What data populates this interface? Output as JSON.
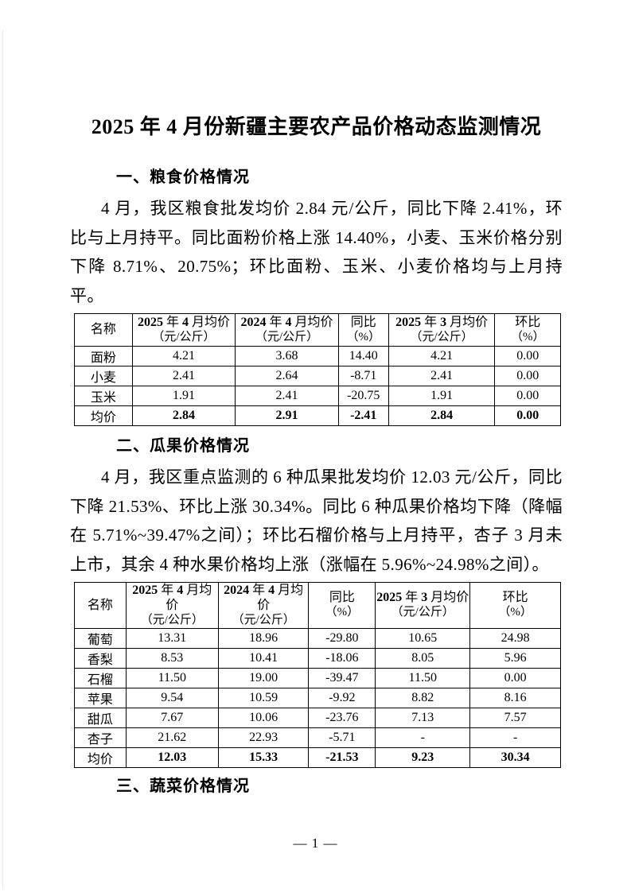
{
  "document": {
    "title": "2025 年 4 月份新疆主要农产品价格动态监测情况",
    "footer": {
      "page_number": "— 1 —"
    }
  },
  "sections": {
    "grain": {
      "heading": "一、粮食价格情况",
      "paragraph": "4 月，我区粮食批发均价 2.84 元/公斤，同比下降 2.41%，环比与上月持平。同比面粉价格上涨 14.40%，小麦、玉米价格分别下降 8.71%、20.75%；环比面粉、玉米、小麦价格均与上月持平。"
    },
    "fruit": {
      "heading": "二、瓜果价格情况",
      "paragraph": "4 月，我区重点监测的 6 种瓜果批发均价 12.03 元/公斤，同比下降 21.53%、环比上涨 30.34%。同比 6 种瓜果价格均下降（降幅在 5.71%~39.47%之间）；环比石榴价格与上月持平，杏子 3 月未上市，其余 4 种水果价格均上涨（涨幅在 5.96%~24.98%之间）。"
    },
    "vegetable": {
      "heading": "三、蔬菜价格情况"
    }
  },
  "tables": [
    {
      "name": "grain-price-table",
      "col_widths": [
        "11.9%",
        "21.2%",
        "21.2%",
        "10.3%",
        "21.9%",
        "13.5%"
      ],
      "headers": [
        {
          "line1": "名称",
          "line2": ""
        },
        {
          "line1": "2025 年 4 月均价",
          "line2": "（元/公斤）"
        },
        {
          "line1": "2024 年 4 月均价",
          "line2": "（元/公斤）"
        },
        {
          "line1": "同比",
          "line2": "（%）"
        },
        {
          "line1": "2025 年 3 月均价",
          "line2": "（元/公斤）"
        },
        {
          "line1": "环比",
          "line2": "（%）"
        }
      ],
      "rows": [
        {
          "cells": [
            "面粉",
            "4.21",
            "3.68",
            "14.40",
            "4.21",
            "0.00"
          ],
          "bold": false
        },
        {
          "cells": [
            "小麦",
            "2.41",
            "2.64",
            "-8.71",
            "2.41",
            "0.00"
          ],
          "bold": false
        },
        {
          "cells": [
            "玉米",
            "1.91",
            "2.41",
            "-20.75",
            "1.91",
            "0.00"
          ],
          "bold": false
        },
        {
          "cells": [
            "均价",
            "2.84",
            "2.91",
            "-2.41",
            "2.84",
            "0.00"
          ],
          "bold": true
        }
      ]
    },
    {
      "name": "fruit-price-table",
      "col_widths": [
        "10.6%",
        "19.0%",
        "18.6%",
        "13.7%",
        "19.5%",
        "18.6%"
      ],
      "headers": [
        {
          "line1": "名称",
          "line2": ""
        },
        {
          "line1": "2025 年 4 月均价",
          "line2": "（元/公斤）"
        },
        {
          "line1": "2024 年 4 月均价",
          "line2": "（元/公斤）"
        },
        {
          "line1": "同比",
          "line2": "（%）"
        },
        {
          "line1": "2025 年 3 月均价",
          "line2": "（元/公斤）"
        },
        {
          "line1": "环比",
          "line2": "（%）"
        }
      ],
      "rows": [
        {
          "cells": [
            "葡萄",
            "13.31",
            "18.96",
            "-29.80",
            "10.65",
            "24.98"
          ],
          "bold": false
        },
        {
          "cells": [
            "香梨",
            "8.53",
            "10.41",
            "-18.06",
            "8.05",
            "5.96"
          ],
          "bold": false
        },
        {
          "cells": [
            "石榴",
            "11.50",
            "19.00",
            "-39.47",
            "11.50",
            "0.00"
          ],
          "bold": false
        },
        {
          "cells": [
            "苹果",
            "9.54",
            "10.59",
            "-9.92",
            "8.82",
            "8.16"
          ],
          "bold": false
        },
        {
          "cells": [
            "甜瓜",
            "7.67",
            "10.06",
            "-23.76",
            "7.13",
            "7.57"
          ],
          "bold": false
        },
        {
          "cells": [
            "杏子",
            "21.62",
            "22.93",
            "-5.71",
            "-",
            "-"
          ],
          "bold": false
        },
        {
          "cells": [
            "均价",
            "12.03",
            "15.33",
            "-21.53",
            "9.23",
            "30.34"
          ],
          "bold": true
        }
      ]
    }
  ]
}
